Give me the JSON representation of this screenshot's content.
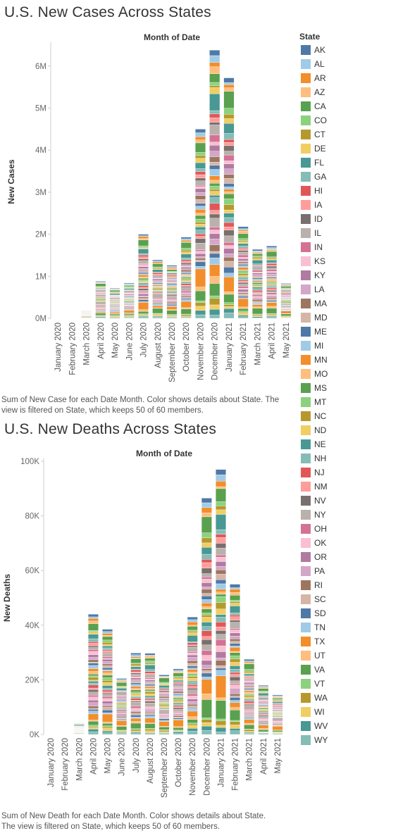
{
  "legend": {
    "title": "State",
    "states": [
      {
        "code": "AK",
        "color": "#4e79a7"
      },
      {
        "code": "AL",
        "color": "#a0cbe8"
      },
      {
        "code": "AR",
        "color": "#f28e2b"
      },
      {
        "code": "AZ",
        "color": "#ffbe7d"
      },
      {
        "code": "CA",
        "color": "#59a14f"
      },
      {
        "code": "CO",
        "color": "#8cd17d"
      },
      {
        "code": "CT",
        "color": "#b6992d"
      },
      {
        "code": "DE",
        "color": "#f1ce63"
      },
      {
        "code": "FL",
        "color": "#499894"
      },
      {
        "code": "GA",
        "color": "#86bcb6"
      },
      {
        "code": "HI",
        "color": "#e15759"
      },
      {
        "code": "IA",
        "color": "#ff9d9a"
      },
      {
        "code": "ID",
        "color": "#79706e"
      },
      {
        "code": "IL",
        "color": "#bab0ac"
      },
      {
        "code": "IN",
        "color": "#d37295"
      },
      {
        "code": "KS",
        "color": "#fabfd2"
      },
      {
        "code": "KY",
        "color": "#b07aa1"
      },
      {
        "code": "LA",
        "color": "#d4a6c8"
      },
      {
        "code": "MA",
        "color": "#9d7660"
      },
      {
        "code": "MD",
        "color": "#d7b5a6"
      },
      {
        "code": "ME",
        "color": "#4e79a7"
      },
      {
        "code": "MI",
        "color": "#a0cbe8"
      },
      {
        "code": "MN",
        "color": "#f28e2b"
      },
      {
        "code": "MO",
        "color": "#ffbe7d"
      },
      {
        "code": "MS",
        "color": "#59a14f"
      },
      {
        "code": "MT",
        "color": "#8cd17d"
      },
      {
        "code": "NC",
        "color": "#b6992d"
      },
      {
        "code": "ND",
        "color": "#f1ce63"
      },
      {
        "code": "NE",
        "color": "#499894"
      },
      {
        "code": "NH",
        "color": "#86bcb6"
      },
      {
        "code": "NJ",
        "color": "#e15759"
      },
      {
        "code": "NM",
        "color": "#ff9d9a"
      },
      {
        "code": "NV",
        "color": "#79706e"
      },
      {
        "code": "NY",
        "color": "#bab0ac"
      },
      {
        "code": "OH",
        "color": "#d37295"
      },
      {
        "code": "OK",
        "color": "#fabfd2"
      },
      {
        "code": "OR",
        "color": "#b07aa1"
      },
      {
        "code": "PA",
        "color": "#d4a6c8"
      },
      {
        "code": "RI",
        "color": "#9d7660"
      },
      {
        "code": "SC",
        "color": "#d7b5a6"
      },
      {
        "code": "SD",
        "color": "#4e79a7"
      },
      {
        "code": "TN",
        "color": "#a0cbe8"
      },
      {
        "code": "TX",
        "color": "#f28e2b"
      },
      {
        "code": "UT",
        "color": "#ffbe7d"
      },
      {
        "code": "VA",
        "color": "#59a14f"
      },
      {
        "code": "VT",
        "color": "#8cd17d"
      },
      {
        "code": "WA",
        "color": "#b6992d"
      },
      {
        "code": "WI",
        "color": "#f1ce63"
      },
      {
        "code": "WV",
        "color": "#499894"
      },
      {
        "code": "WY",
        "color": "#86bcb6"
      }
    ]
  },
  "chart_data": [
    {
      "type": "bar",
      "stacked_by": "State",
      "title": "U.S. New Cases Across States",
      "top_label": "Month of Date",
      "xlabel": "",
      "ylabel": "New Cases",
      "ylim": [
        0,
        6500000
      ],
      "yticks": [
        0,
        1000000,
        2000000,
        3000000,
        4000000,
        5000000,
        6000000
      ],
      "ytick_labels": [
        "0M",
        "1M",
        "2M",
        "3M",
        "4M",
        "5M",
        "6M"
      ],
      "grid": false,
      "categories": [
        "January 2020",
        "February 2020",
        "March 2020",
        "April 2020",
        "May 2020",
        "June 2020",
        "July 2020",
        "August 2020",
        "September 2020",
        "October 2020",
        "November 2020",
        "December 2020",
        "January 2021",
        "February 2021",
        "March 2021",
        "April 2021",
        "May 2021"
      ],
      "totals": [
        0,
        0,
        190000,
        880000,
        720000,
        840000,
        2000000,
        1390000,
        1260000,
        1930000,
        4500000,
        6380000,
        5720000,
        2180000,
        1640000,
        1720000,
        830000
      ],
      "caption": "Sum of New Case for each Date Month.  Color shows details about State. The view is filtered on State, which keeps 50 of 60 members."
    },
    {
      "type": "bar",
      "stacked_by": "State",
      "title": "U.S. New Deaths Across States",
      "top_label": "Month of Date",
      "xlabel": "",
      "ylabel": "New Deaths",
      "ylim": [
        0,
        100000
      ],
      "yticks": [
        0,
        20000,
        40000,
        60000,
        80000,
        100000
      ],
      "ytick_labels": [
        "0K",
        "20K",
        "40K",
        "60K",
        "80K",
        "100K"
      ],
      "grid": false,
      "categories": [
        "January 2020",
        "February 2020",
        "March 2020",
        "April 2020",
        "May 2020",
        "June 2020",
        "July 2020",
        "August 2020",
        "September 2020",
        "October 2020",
        "November 2020",
        "December 2020",
        "January 2021",
        "February 2021",
        "March 2021",
        "April 2021",
        "May 2021"
      ],
      "totals": [
        0,
        0,
        4000,
        44000,
        38500,
        20500,
        29800,
        29700,
        21800,
        24000,
        43000,
        86500,
        97000,
        55000,
        27500,
        18000,
        14500
      ],
      "caption": "Sum of New Death for each Date Month.  Color shows details about State. The view is filtered on State, which keeps 50 of 60 members."
    }
  ]
}
